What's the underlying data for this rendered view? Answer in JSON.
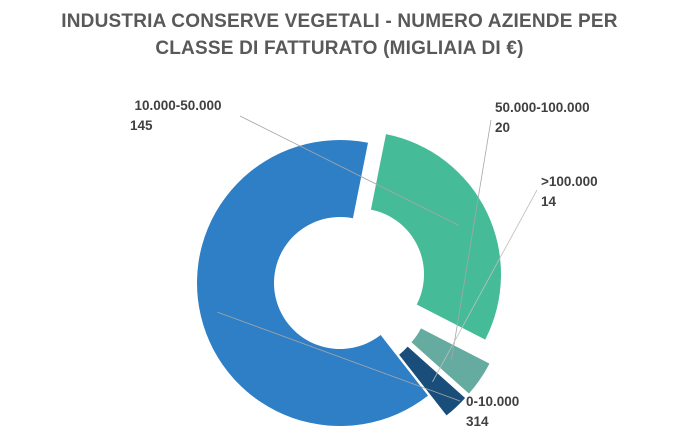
{
  "chart_data": {
    "type": "pie",
    "subtype": "doughnut",
    "title_lines": [
      "INDUSTRIA CONSERVE VEGETALI - NUMERO AZIENDE PER",
      "CLASSE DI FATTURATO (MIGLIAIA DI €)"
    ],
    "slices": [
      {
        "label": "0-10.000",
        "value": 314,
        "value_text": "314",
        "color": "#2e7fc6"
      },
      {
        "label": "10.000-50.000",
        "value": 145,
        "value_text": "145",
        "color": "#45bc97"
      },
      {
        "label": "50.000-100.000",
        "value": 20,
        "value_text": "20",
        "color": "#65ab9f"
      },
      {
        "label": ">100.000",
        "value": 14,
        "value_text": "14",
        "color": "#1a4e7a"
      }
    ],
    "legend": "none"
  }
}
